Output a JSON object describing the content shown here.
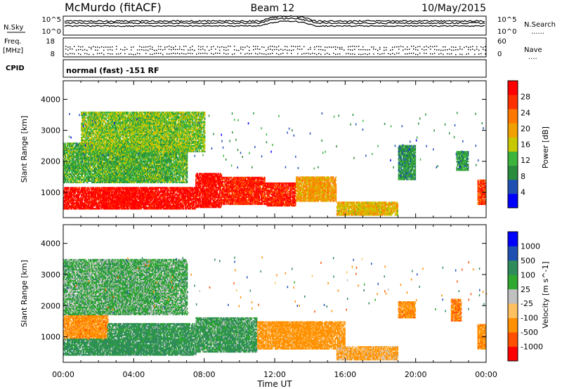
{
  "header": {
    "station": "McMurdo (fitACF)",
    "beam": "Beam 12",
    "date": "10/May/2015"
  },
  "top_panels": {
    "nsky_label": "N.Sky",
    "nsearch_label": "N.Search",
    "nsearch_marker": "......",
    "noise_ticks_left": [
      "10^5",
      "10^0"
    ],
    "noise_ticks_right": [
      "10^5",
      "10^0"
    ],
    "freq_label": "Freq.",
    "freq_unit": "[MHz]",
    "freq_ticks": [
      "18",
      "8"
    ],
    "nave_label": "Nave",
    "nave_marker": "....",
    "nave_ticks": [
      "60",
      "0"
    ],
    "cpid_label": "CPID",
    "cpid_value": "normal (fast) -151 RF"
  },
  "x_axis": {
    "label": "Time UT",
    "ticks": [
      "00:00",
      "04:00",
      "08:00",
      "12:00",
      "16:00",
      "20:00",
      "00:00"
    ]
  },
  "colors": {
    "power": [
      "#0000ff",
      "#1e50b4",
      "#288c3c",
      "#3cb43c",
      "#c8c800",
      "#f0a000",
      "#ff7800",
      "#ff3000",
      "#ff0000"
    ],
    "velocity": [
      "#ff0000",
      "#ff5000",
      "#ff9000",
      "#ffc060",
      "#c0c0c0",
      "#2ea82e",
      "#2e8c5a",
      "#1e50b4",
      "#0000ff"
    ]
  },
  "chart_data": [
    {
      "type": "heatmap",
      "name": "power",
      "xlabel": "Time UT",
      "ylabel": "Slant Range [km]",
      "xlim": [
        0,
        24
      ],
      "ylim": [
        180,
        4600
      ],
      "yticks": [
        1000,
        2000,
        3000,
        4000
      ],
      "colorbar": {
        "label": "Power [dB]",
        "ticks": [
          4,
          8,
          12,
          16,
          20,
          24,
          28
        ],
        "range": [
          0,
          32
        ]
      },
      "regions": [
        {
          "t0": 0.0,
          "t1": 7.5,
          "r0": 450,
          "r1": 1150,
          "value": 30
        },
        {
          "t0": 7.5,
          "t1": 9.0,
          "r0": 500,
          "r1": 1600,
          "value": 30
        },
        {
          "t0": 9.0,
          "t1": 11.5,
          "r0": 600,
          "r1": 1500,
          "value": 28
        },
        {
          "t0": 11.5,
          "t1": 13.2,
          "r0": 550,
          "r1": 1300,
          "value": 28
        },
        {
          "t0": 13.2,
          "t1": 15.5,
          "r0": 700,
          "r1": 1500,
          "value": 20
        },
        {
          "t0": 0.0,
          "t1": 7.0,
          "r0": 1300,
          "r1": 2600,
          "value": 12
        },
        {
          "t0": 1.0,
          "t1": 8.0,
          "r0": 2300,
          "r1": 3600,
          "value": 14
        },
        {
          "t0": 15.5,
          "t1": 19.0,
          "r0": 250,
          "r1": 700,
          "value": 18
        },
        {
          "t0": 19.0,
          "t1": 20.0,
          "r0": 1400,
          "r1": 2500,
          "value": 10
        },
        {
          "t0": 22.3,
          "t1": 23.0,
          "r0": 1700,
          "r1": 2300,
          "value": 10
        },
        {
          "t0": 23.5,
          "t1": 24.0,
          "r0": 600,
          "r1": 1400,
          "value": 26
        }
      ]
    },
    {
      "type": "heatmap",
      "name": "velocity",
      "xlabel": "Time UT",
      "ylabel": "Slant Range [km]",
      "xlim": [
        0,
        24
      ],
      "ylim": [
        180,
        4600
      ],
      "yticks": [
        1000,
        2000,
        3000,
        4000
      ],
      "colorbar": {
        "label": "Velocity [m s^-1]",
        "ticks": [
          1000,
          500,
          100,
          25,
          -25,
          -100,
          -500,
          -1000
        ]
      },
      "regions": [
        {
          "t0": 0.0,
          "t1": 2.5,
          "r0": 900,
          "r1": 1700,
          "value": -300
        },
        {
          "t0": 0.0,
          "t1": 7.5,
          "r0": 400,
          "r1": 900,
          "value": 200
        },
        {
          "t0": 2.5,
          "t1": 7.5,
          "r0": 900,
          "r1": 1400,
          "value": 150
        },
        {
          "t0": 7.5,
          "t1": 11.0,
          "r0": 500,
          "r1": 1600,
          "value": 120
        },
        {
          "t0": 11.0,
          "t1": 16.0,
          "r0": 600,
          "r1": 1500,
          "value": -250
        },
        {
          "t0": 0.0,
          "t1": 7.0,
          "r0": 1700,
          "r1": 3500,
          "value": 60
        },
        {
          "t0": 15.5,
          "t1": 19.0,
          "r0": 250,
          "r1": 700,
          "value": -120
        },
        {
          "t0": 19.0,
          "t1": 20.0,
          "r0": 1600,
          "r1": 2100,
          "value": -300
        },
        {
          "t0": 22.0,
          "t1": 22.6,
          "r0": 1500,
          "r1": 2200,
          "value": -400
        },
        {
          "t0": 23.5,
          "t1": 24.0,
          "r0": 600,
          "r1": 1400,
          "value": -300
        }
      ]
    }
  ]
}
